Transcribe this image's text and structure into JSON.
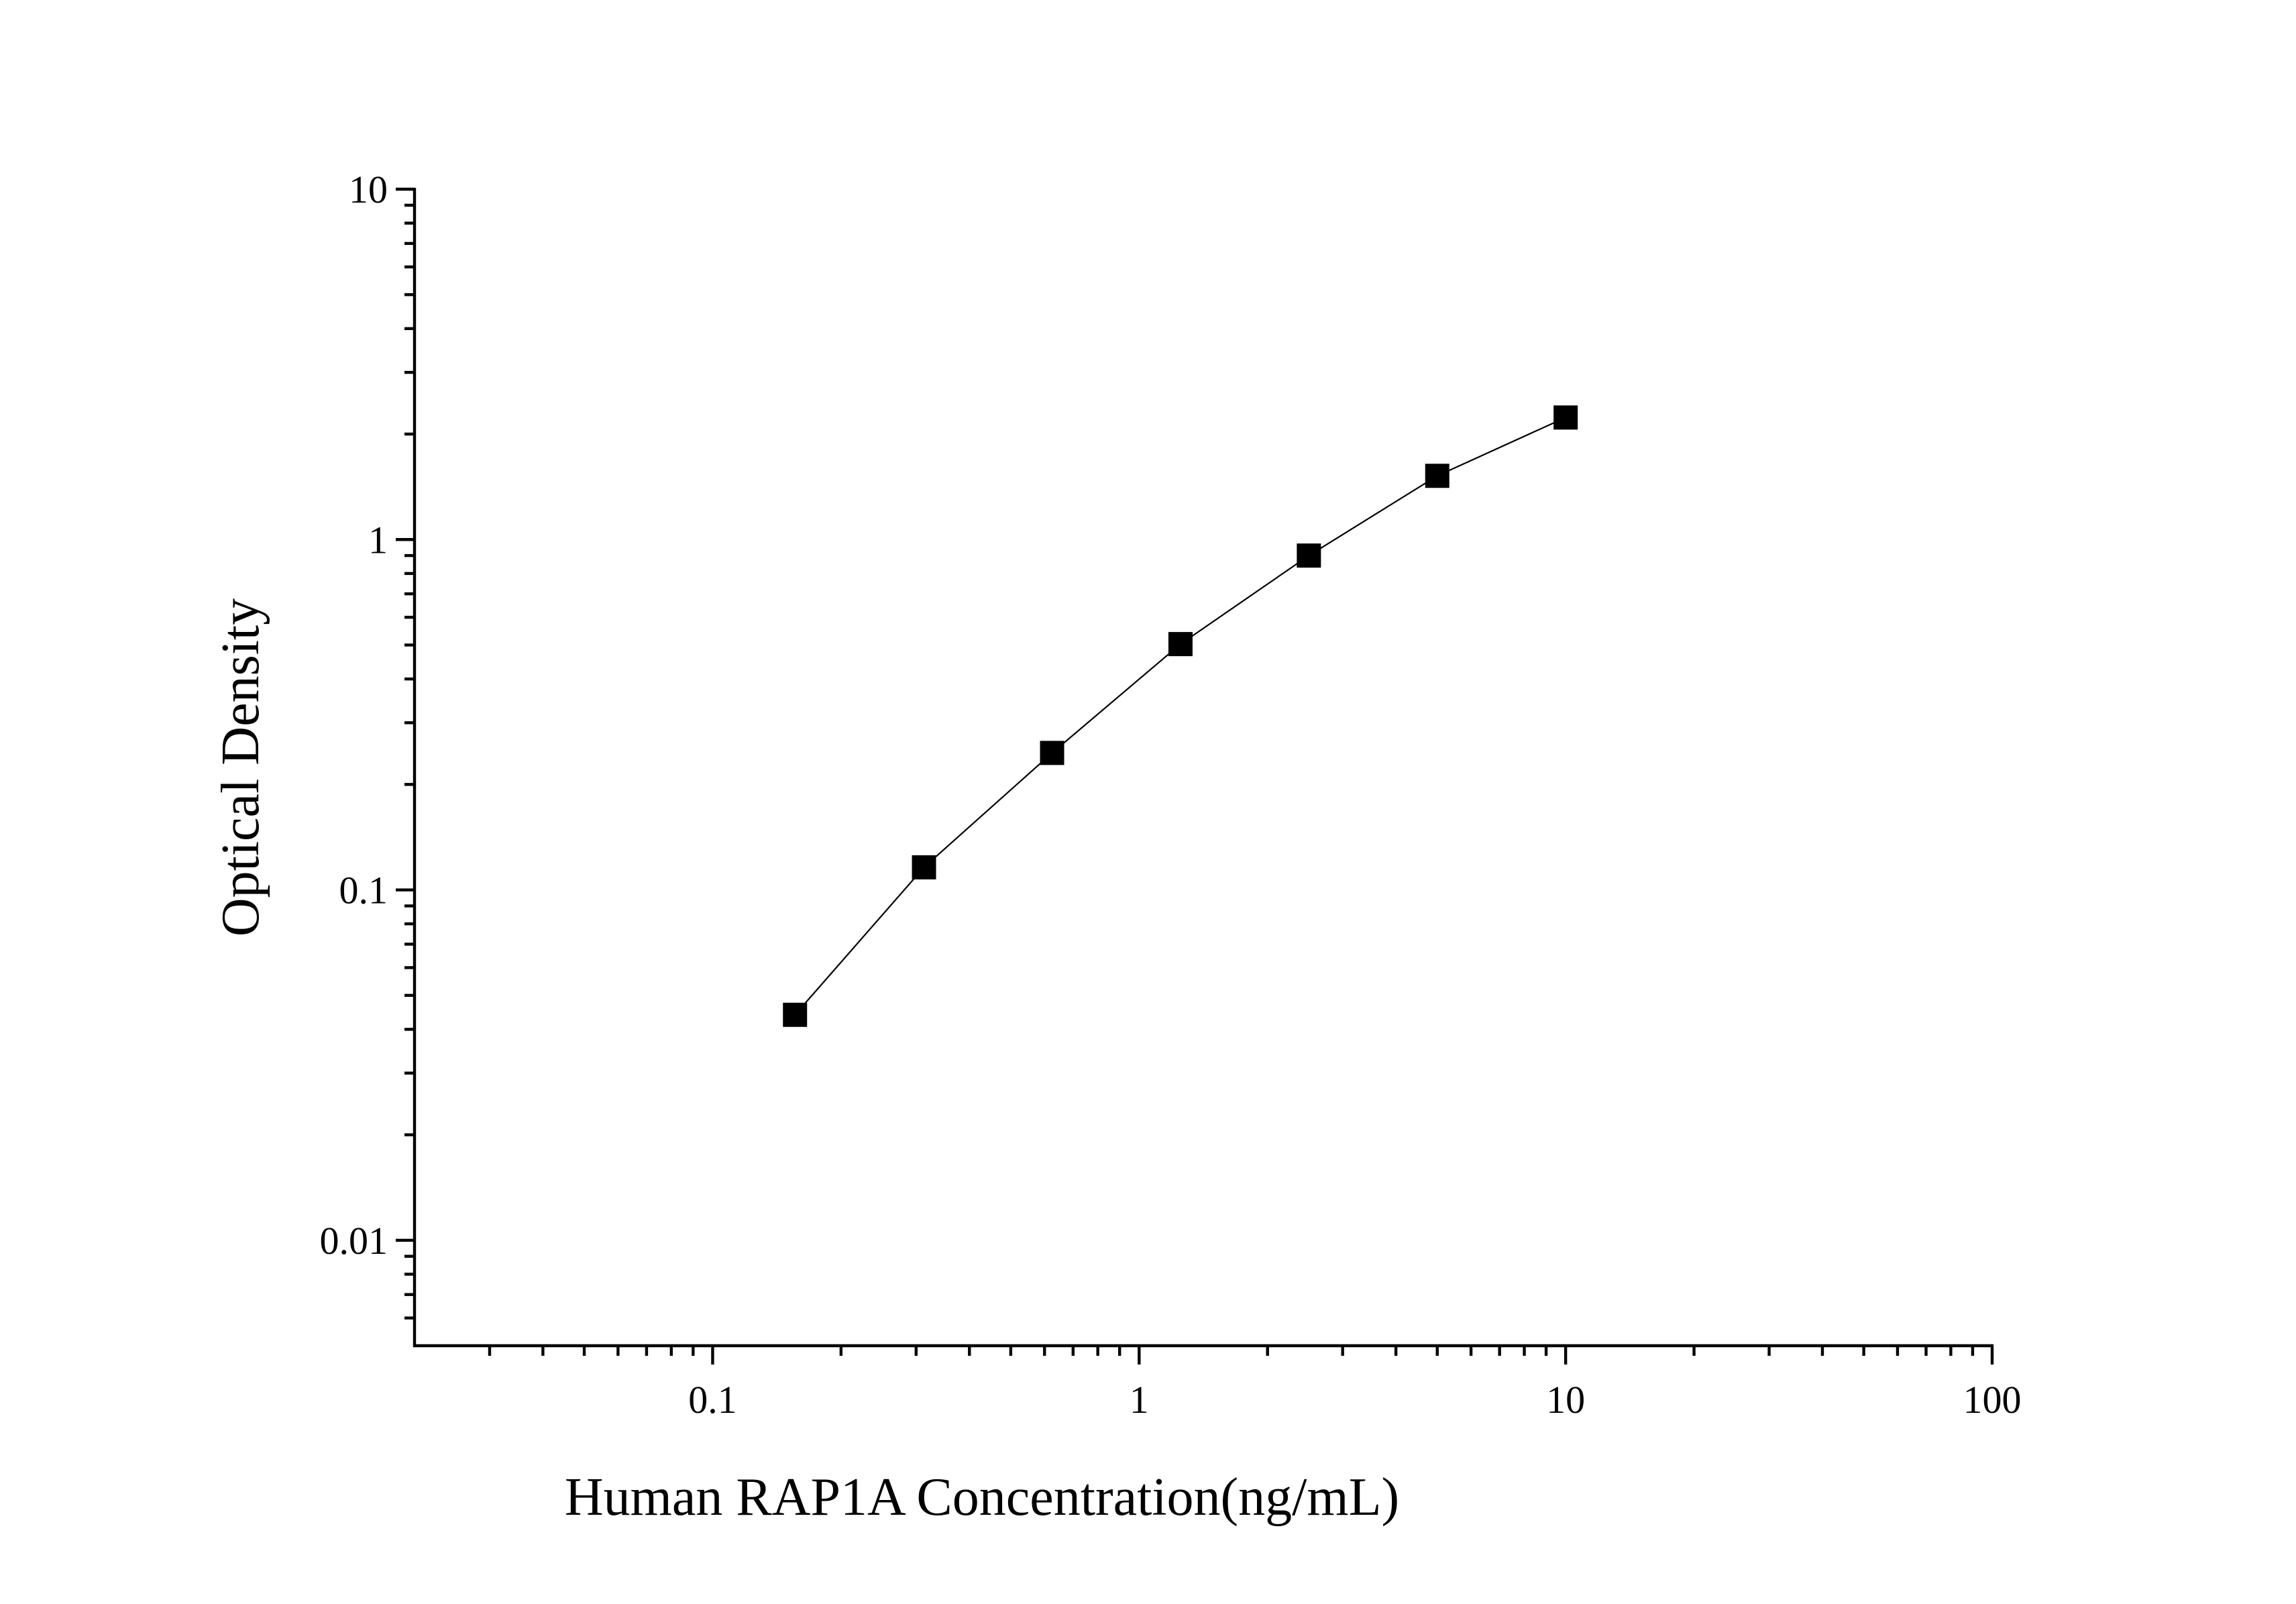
{
  "chart_data": {
    "type": "line",
    "x_label": "Human RAP1A Concentration(ng/mL)",
    "y_label": "Optical Density",
    "x": [
      0.156,
      0.313,
      0.625,
      1.25,
      2.5,
      5,
      10
    ],
    "series": [
      {
        "color": "#000000",
        "values": [
          0.044,
          0.116,
          0.246,
          0.503,
          0.9,
          1.52,
          2.23
        ]
      }
    ],
    "xlim": [
      0.02,
      100
    ],
    "ylim": [
      0.005,
      10
    ],
    "xticks": [
      0.1,
      1,
      10,
      100
    ],
    "yticks": [
      0.01,
      0.1,
      1,
      10
    ],
    "xscale": "log",
    "yscale": "log",
    "minor_ticks": true
  }
}
